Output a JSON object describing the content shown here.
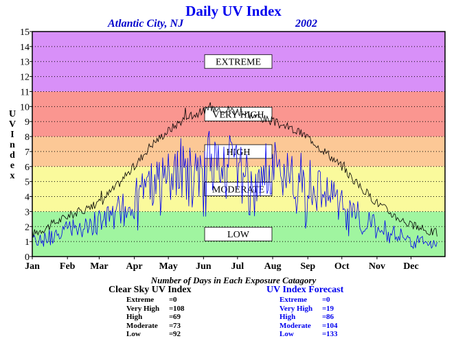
{
  "header": {
    "title": "Daily UV Index",
    "location": "Atlantic City, NJ",
    "year": "2002"
  },
  "chart_data": {
    "type": "line",
    "title": "Daily UV Index",
    "ylabel": "UV Index",
    "xlabel": "",
    "ylim": [
      0,
      15
    ],
    "yticks": [
      "0",
      "1",
      "2",
      "3",
      "4",
      "5",
      "6",
      "7",
      "8",
      "9",
      "10",
      "11",
      "12",
      "13",
      "14",
      "15"
    ],
    "xticks": [
      "Jan",
      "Feb",
      "Mar",
      "Apr",
      "May",
      "Jun",
      "Jul",
      "Aug",
      "Sep",
      "Oct",
      "Nov",
      "Dec"
    ],
    "xlim": [
      1,
      365
    ],
    "grid": true,
    "bands": [
      {
        "label": "LOW",
        "from": 0,
        "to": 3,
        "color": "#a0f5a0"
      },
      {
        "label": "MODERATE",
        "from": 3,
        "to": 6,
        "color": "#fafa9c"
      },
      {
        "label": "HIGH",
        "from": 6,
        "to": 8,
        "color": "#fcc896"
      },
      {
        "label": "VERY HIGH",
        "from": 8,
        "to": 11,
        "color": "#fa9690"
      },
      {
        "label": "EXTREME",
        "from": 11,
        "to": 15,
        "color": "#d890f8"
      }
    ],
    "series": [
      {
        "key": "clear_sky",
        "color": "#000000",
        "x": [
          1,
          15,
          32,
          46,
          60,
          74,
          91,
          105,
          121,
          135,
          152,
          166,
          182,
          196,
          213,
          227,
          244,
          258,
          274,
          288,
          305,
          319,
          335,
          349,
          358
        ],
        "values": [
          1.5,
          2.0,
          2.7,
          3.1,
          3.6,
          4.6,
          6.0,
          7.4,
          8.4,
          9.2,
          9.7,
          9.9,
          9.7,
          9.4,
          9.0,
          8.6,
          8.0,
          7.1,
          6.0,
          4.8,
          3.6,
          2.8,
          2.1,
          1.7,
          1.6
        ]
      },
      {
        "key": "forecast",
        "color": "#0000ee",
        "x": [
          1,
          15,
          32,
          46,
          60,
          74,
          91,
          105,
          121,
          135,
          152,
          166,
          182,
          196,
          213,
          227,
          244,
          258,
          274,
          288,
          305,
          319,
          335,
          349,
          358
        ],
        "values": [
          1.2,
          1.6,
          2.1,
          2.4,
          2.7,
          3.5,
          4.4,
          5.6,
          6.5,
          7.0,
          7.2,
          7.6,
          7.5,
          7.1,
          7.0,
          6.6,
          5.8,
          5.1,
          4.2,
          3.3,
          2.5,
          1.9,
          1.4,
          1.1,
          0.9
        ]
      }
    ]
  },
  "summary": {
    "title": "Number of Days in Each Exposure Catagory",
    "clear_sky": {
      "title": "Clear Sky UV Index",
      "rows": [
        {
          "label": "Extreme",
          "value": "0"
        },
        {
          "label": "Very High",
          "value": "108"
        },
        {
          "label": "High",
          "value": "69"
        },
        {
          "label": "Moderate",
          "value": "73"
        },
        {
          "label": "Low",
          "value": "92"
        }
      ]
    },
    "forecast": {
      "title": "UV Index Forecast",
      "rows": [
        {
          "label": "Extreme",
          "value": "0"
        },
        {
          "label": "Very High",
          "value": "19"
        },
        {
          "label": "High",
          "value": "86"
        },
        {
          "label": "Moderate",
          "value": "104"
        },
        {
          "label": "Low",
          "value": "133"
        }
      ]
    }
  }
}
